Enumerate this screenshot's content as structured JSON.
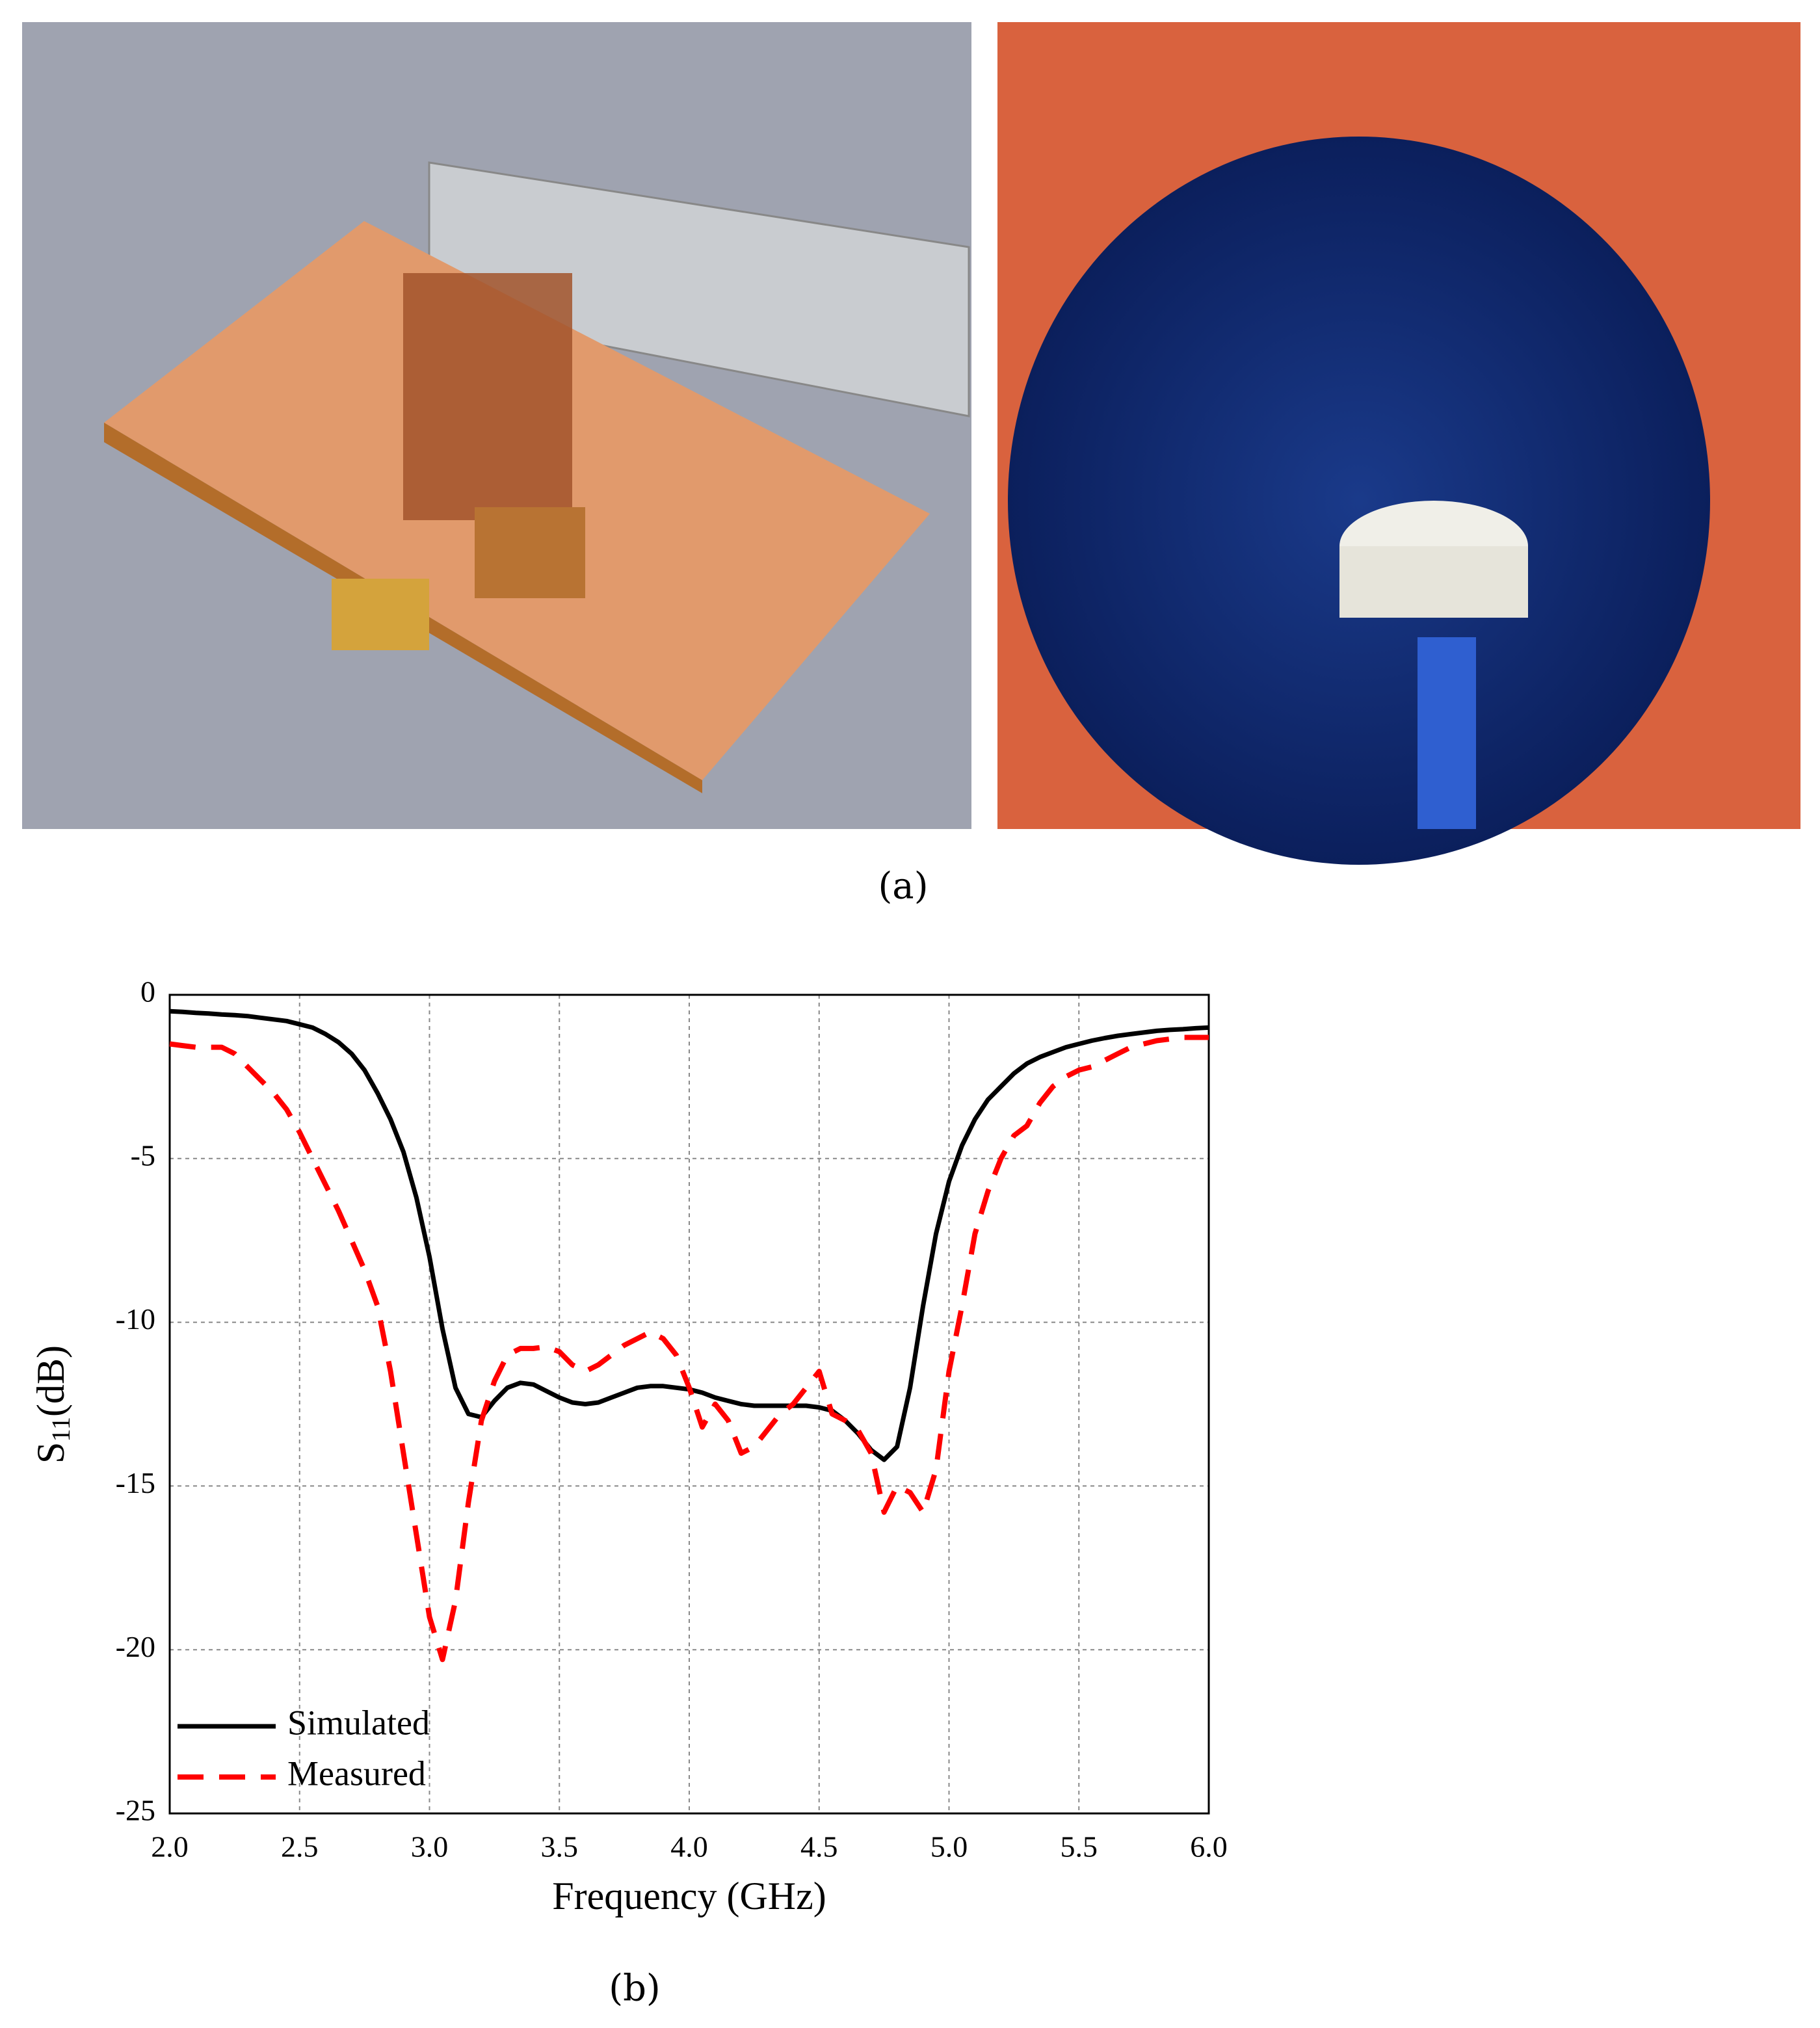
{
  "captions": {
    "a": "(a)",
    "b": "(b)"
  },
  "chart_data": {
    "type": "line",
    "xlabel": "Frequency (GHz)",
    "ylabel": [
      "S",
      "11",
      "(dB)"
    ],
    "xlim": [
      2,
      6
    ],
    "ylim": [
      -25,
      0
    ],
    "xticks": [
      {
        "value": 2,
        "label": "2.0"
      },
      {
        "value": 2.5,
        "label": "2.5"
      },
      {
        "value": 3,
        "label": "3.0"
      },
      {
        "value": 3.5,
        "label": "3.5"
      },
      {
        "value": 4,
        "label": "4.0"
      },
      {
        "value": 4.5,
        "label": "4.5"
      },
      {
        "value": 5,
        "label": "5.0"
      },
      {
        "value": 5.5,
        "label": "5.5"
      },
      {
        "value": 6,
        "label": "6.0"
      }
    ],
    "yticks": [
      0,
      -5,
      -10,
      -15,
      -20,
      -25
    ],
    "grid": true,
    "legend": "lower left",
    "x": [
      2,
      2.05,
      2.1,
      2.15,
      2.2,
      2.25,
      2.3,
      2.35,
      2.4,
      2.45,
      2.5,
      2.55,
      2.6,
      2.65,
      2.7,
      2.75,
      2.8,
      2.85,
      2.9,
      2.95,
      3,
      3.05,
      3.1,
      3.15,
      3.2,
      3.25,
      3.3,
      3.35,
      3.4,
      3.45,
      3.5,
      3.55,
      3.6,
      3.65,
      3.7,
      3.75,
      3.8,
      3.85,
      3.9,
      3.95,
      4,
      4.05,
      4.1,
      4.15,
      4.2,
      4.25,
      4.3,
      4.35,
      4.4,
      4.45,
      4.5,
      4.55,
      4.6,
      4.65,
      4.7,
      4.75,
      4.8,
      4.85,
      4.9,
      4.95,
      5,
      5.05,
      5.1,
      5.15,
      5.2,
      5.25,
      5.3,
      5.35,
      5.4,
      5.45,
      5.5,
      5.55,
      5.6,
      5.65,
      5.7,
      5.75,
      5.8,
      5.85,
      5.9,
      5.95,
      6
    ],
    "series": [
      {
        "name": "Simulated",
        "color": "#000000",
        "dash": false,
        "values": [
          -0.5,
          -0.52,
          -0.55,
          -0.57,
          -0.6,
          -0.62,
          -0.65,
          -0.7,
          -0.75,
          -0.8,
          -0.9,
          -1.0,
          -1.2,
          -1.45,
          -1.8,
          -2.3,
          -3.0,
          -3.8,
          -4.8,
          -6.2,
          -8.0,
          -10.2,
          -12.0,
          -12.8,
          -12.9,
          -12.4,
          -12.0,
          -11.85,
          -11.9,
          -12.1,
          -12.3,
          -12.45,
          -12.5,
          -12.45,
          -12.3,
          -12.15,
          -12.0,
          -11.95,
          -11.95,
          -12.0,
          -12.05,
          -12.15,
          -12.3,
          -12.4,
          -12.5,
          -12.55,
          -12.55,
          -12.55,
          -12.55,
          -12.55,
          -12.6,
          -12.7,
          -13.0,
          -13.4,
          -13.9,
          -14.2,
          -13.8,
          -12.0,
          -9.5,
          -7.3,
          -5.7,
          -4.6,
          -3.8,
          -3.2,
          -2.8,
          -2.4,
          -2.1,
          -1.9,
          -1.75,
          -1.6,
          -1.5,
          -1.4,
          -1.32,
          -1.25,
          -1.2,
          -1.15,
          -1.1,
          -1.07,
          -1.05,
          -1.02,
          -1.0
        ]
      },
      {
        "name": "Measured",
        "color": "#ff0000",
        "dash": true,
        "values": [
          -1.5,
          -1.55,
          -1.6,
          -1.6,
          -1.6,
          -1.8,
          -2.2,
          -2.6,
          -3.0,
          -3.5,
          -4.2,
          -5.0,
          -5.8,
          -6.6,
          -7.5,
          -8.4,
          -9.5,
          -11.5,
          -14.0,
          -16.5,
          -19.0,
          -20.3,
          -18.5,
          -15.5,
          -13.0,
          -11.8,
          -11.0,
          -10.8,
          -10.8,
          -10.75,
          -10.9,
          -11.3,
          -11.5,
          -11.3,
          -11.0,
          -10.7,
          -10.5,
          -10.3,
          -10.5,
          -11.0,
          -12.0,
          -13.2,
          -12.5,
          -13.0,
          -14.0,
          -13.8,
          -13.3,
          -12.8,
          -12.5,
          -12.0,
          -11.5,
          -12.8,
          -13.0,
          -13.3,
          -14.0,
          -15.8,
          -15.0,
          -15.2,
          -15.8,
          -14.5,
          -11.5,
          -9.5,
          -7.3,
          -6.0,
          -5.0,
          -4.3,
          -4.0,
          -3.3,
          -2.8,
          -2.5,
          -2.3,
          -2.2,
          -2.0,
          -1.8,
          -1.6,
          -1.5,
          -1.4,
          -1.35,
          -1.3,
          -1.3,
          -1.3
        ]
      }
    ]
  }
}
